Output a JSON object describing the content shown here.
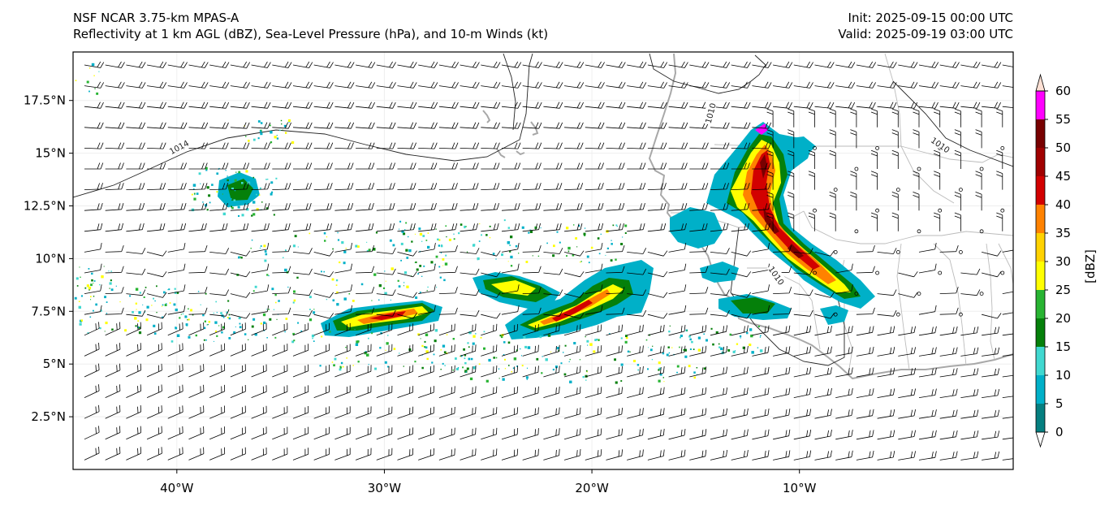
{
  "header": {
    "model": "NSF NCAR 3.75-km MPAS-A",
    "fields": "Reflectivity at 1 km AGL (dBZ), Sea-Level Pressure (hPa), and 10-m Winds (kt)",
    "init": "Init: 2025-09-15 00:00 UTC",
    "valid": "Valid: 2025-09-19 03:00 UTC"
  },
  "map": {
    "lon_range": [
      -45,
      0.3
    ],
    "lat_range": [
      0,
      19.8
    ],
    "lat_ticks": [
      {
        "value": 2.5,
        "label": "2.5°N"
      },
      {
        "value": 5,
        "label": "5°N"
      },
      {
        "value": 7.5,
        "label": "7.5°N"
      },
      {
        "value": 10,
        "label": "10°N"
      },
      {
        "value": 12.5,
        "label": "12.5°N"
      },
      {
        "value": 15,
        "label": "15°N"
      },
      {
        "value": 17.5,
        "label": "17.5°N"
      }
    ],
    "lon_ticks": [
      {
        "value": -40,
        "label": "40°W"
      },
      {
        "value": -30,
        "label": "30°W"
      },
      {
        "value": -20,
        "label": "20°W"
      },
      {
        "value": -10,
        "label": "10°W"
      }
    ],
    "isobar_labels": [
      {
        "value": "1014",
        "lon": -39.9,
        "lat": 15.3
      },
      {
        "value": "1010",
        "lon": -14.3,
        "lat": 16.9
      },
      {
        "value": "1010",
        "lon": -3.2,
        "lat": 15.4
      },
      {
        "value": "1010",
        "lon": -11.1,
        "lat": 9.2
      }
    ],
    "colors": {
      "coast": "#a8a8a8",
      "isobar": "#222222",
      "grid": "#eeeeee"
    }
  },
  "chart_data": {
    "type": "heatmap",
    "title": "Reflectivity at 1 km AGL (dBZ), Sea-Level Pressure (hPa), and 10-m Winds (kt)",
    "xlabel": "",
    "ylabel": "",
    "xlim": [
      -45,
      0.3
    ],
    "ylim": [
      0,
      19.8
    ],
    "colorbar": {
      "label": "[dBZ]",
      "ticks": [
        "0",
        "5",
        "10",
        "15",
        "20",
        "25",
        "30",
        "35",
        "40",
        "45",
        "50",
        "55",
        "60"
      ],
      "colors": [
        "#ffffff",
        "#057f80",
        "#00b0c8",
        "#40d8d0",
        "#05800a",
        "#28b432",
        "#ffff00",
        "#ffd200",
        "#ff8200",
        "#d20000",
        "#a00000",
        "#780000",
        "#ff00ff",
        "#fde0d4"
      ]
    },
    "isobars_hPa": [
      "1014",
      "1010",
      "1010",
      "1010"
    ]
  }
}
